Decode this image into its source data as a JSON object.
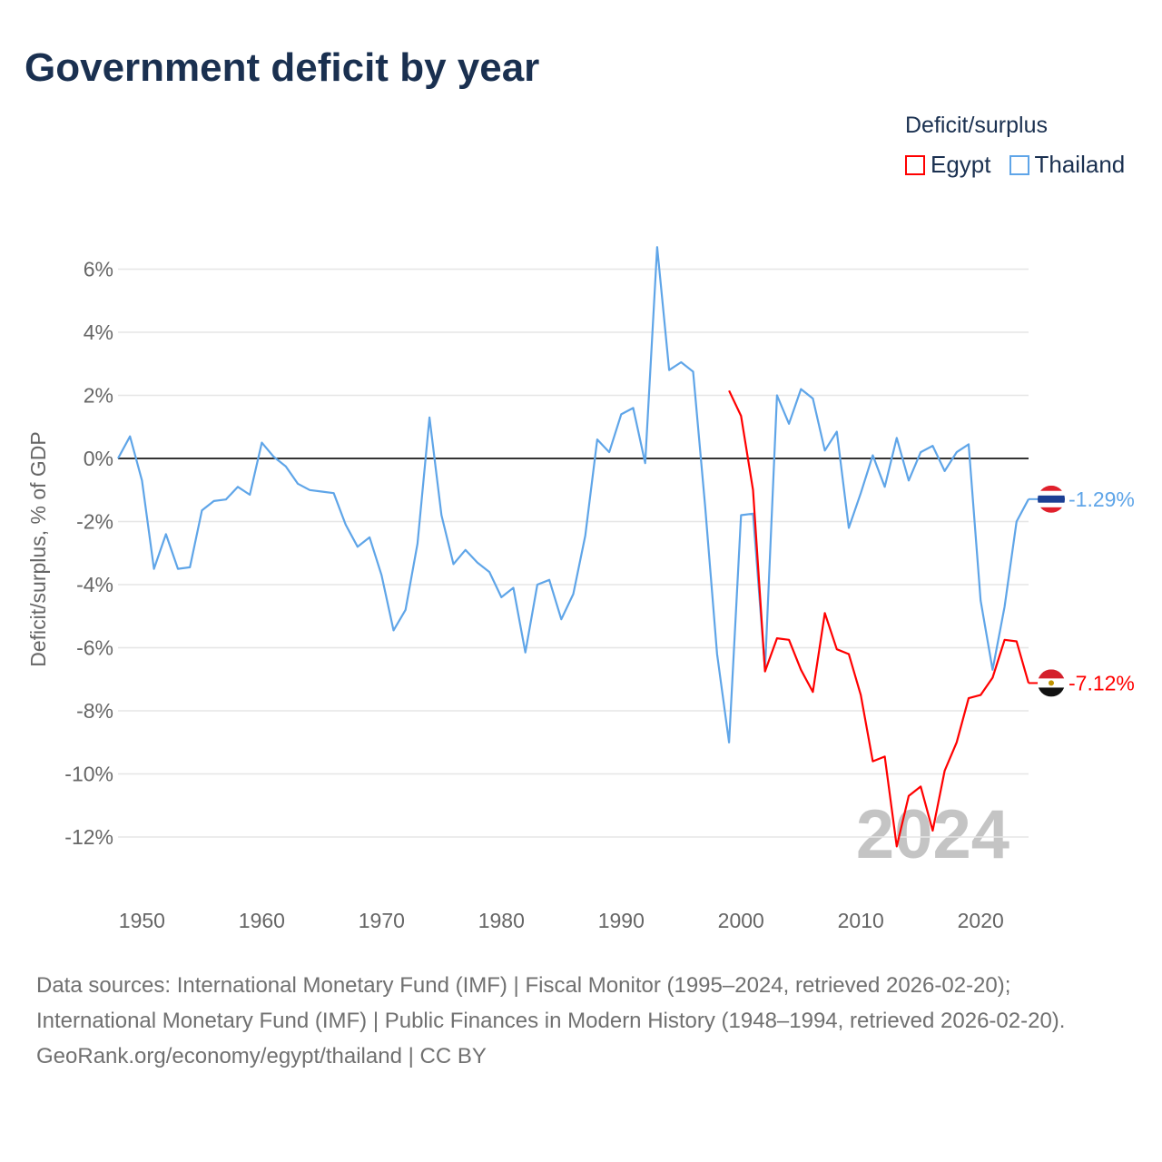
{
  "title": "Government deficit by year",
  "legend": {
    "title": "Deficit/surplus",
    "items": [
      {
        "label": "Egypt",
        "color": "#ff0000"
      },
      {
        "label": "Thailand",
        "color": "#5fa5e8"
      }
    ]
  },
  "footer": {
    "sources": "Data sources: International Monetary Fund (IMF) | Fiscal Monitor (1995–2024, retrieved 2026-02-20); International Monetary Fund (IMF) | Public Finances in Modern History (1948–1994, retrieved 2026-02-20).",
    "credit": "GeoRank.org/economy/egypt/thailand | CC BY"
  },
  "chart_data": {
    "type": "line",
    "title": "Government deficit by year",
    "ylabel": "Deficit/surplus, % of GDP",
    "xlabel": "",
    "xlim": [
      1948,
      2024
    ],
    "ylim": [
      -14,
      7
    ],
    "yticks": [
      6,
      4,
      2,
      0,
      -2,
      -4,
      -6,
      -8,
      -10,
      -12
    ],
    "ytick_labels": [
      "6%",
      "4%",
      "2%",
      "0%",
      "-2%",
      "-4%",
      "-6%",
      "-8%",
      "-10%",
      "-12%"
    ],
    "xticks": [
      1950,
      1960,
      1970,
      1980,
      1990,
      2000,
      2010,
      2020
    ],
    "xtick_labels": [
      "1950",
      "1960",
      "1970",
      "1980",
      "1990",
      "2000",
      "2010",
      "2020"
    ],
    "year_watermark": "2024",
    "grid": true,
    "legend_position": "top-right",
    "series": [
      {
        "name": "Thailand",
        "color": "#5fa5e8",
        "end_label": "-1.29%",
        "start_year": 1948,
        "values": [
          0,
          0.7,
          -0.7,
          -3.5,
          -2.4,
          -3.5,
          -3.45,
          -1.65,
          -1.35,
          -1.3,
          -0.9,
          -1.15,
          0.5,
          0.05,
          -0.25,
          -0.8,
          -1.0,
          -1.05,
          -1.1,
          -2.1,
          -2.8,
          -2.5,
          -3.7,
          -5.45,
          -4.8,
          -2.7,
          1.3,
          -1.8,
          -3.35,
          -2.9,
          -3.3,
          -3.6,
          -4.4,
          -4.1,
          -6.15,
          -4.0,
          -3.85,
          -5.1,
          -4.3,
          -2.45,
          0.6,
          0.2,
          1.4,
          1.6,
          -0.15,
          6.7,
          2.8,
          3.05,
          2.75,
          -1.5,
          -6.2,
          -9.0,
          -1.8,
          -1.75,
          -6.7,
          2.0,
          1.1,
          2.2,
          1.9,
          0.25,
          0.85,
          -2.2,
          -1.1,
          0.1,
          -0.9,
          0.65,
          -0.7,
          0.2,
          0.4,
          -0.4,
          0.2,
          0.45,
          -4.5,
          -6.7,
          -4.7,
          -2.0,
          -1.29
        ]
      },
      {
        "name": "Egypt",
        "color": "#ff0000",
        "end_label": "-7.12%",
        "start_year": 1999,
        "values": [
          2.15,
          1.35,
          -1.0,
          -6.75,
          -5.7,
          -5.75,
          -6.7,
          -7.4,
          -4.9,
          -6.05,
          -6.2,
          -7.5,
          -9.6,
          -9.45,
          -12.3,
          -10.7,
          -10.4,
          -11.8,
          -9.9,
          -9.0,
          -7.6,
          -7.5,
          -6.95,
          -5.75,
          -5.8,
          -7.12
        ]
      }
    ]
  }
}
